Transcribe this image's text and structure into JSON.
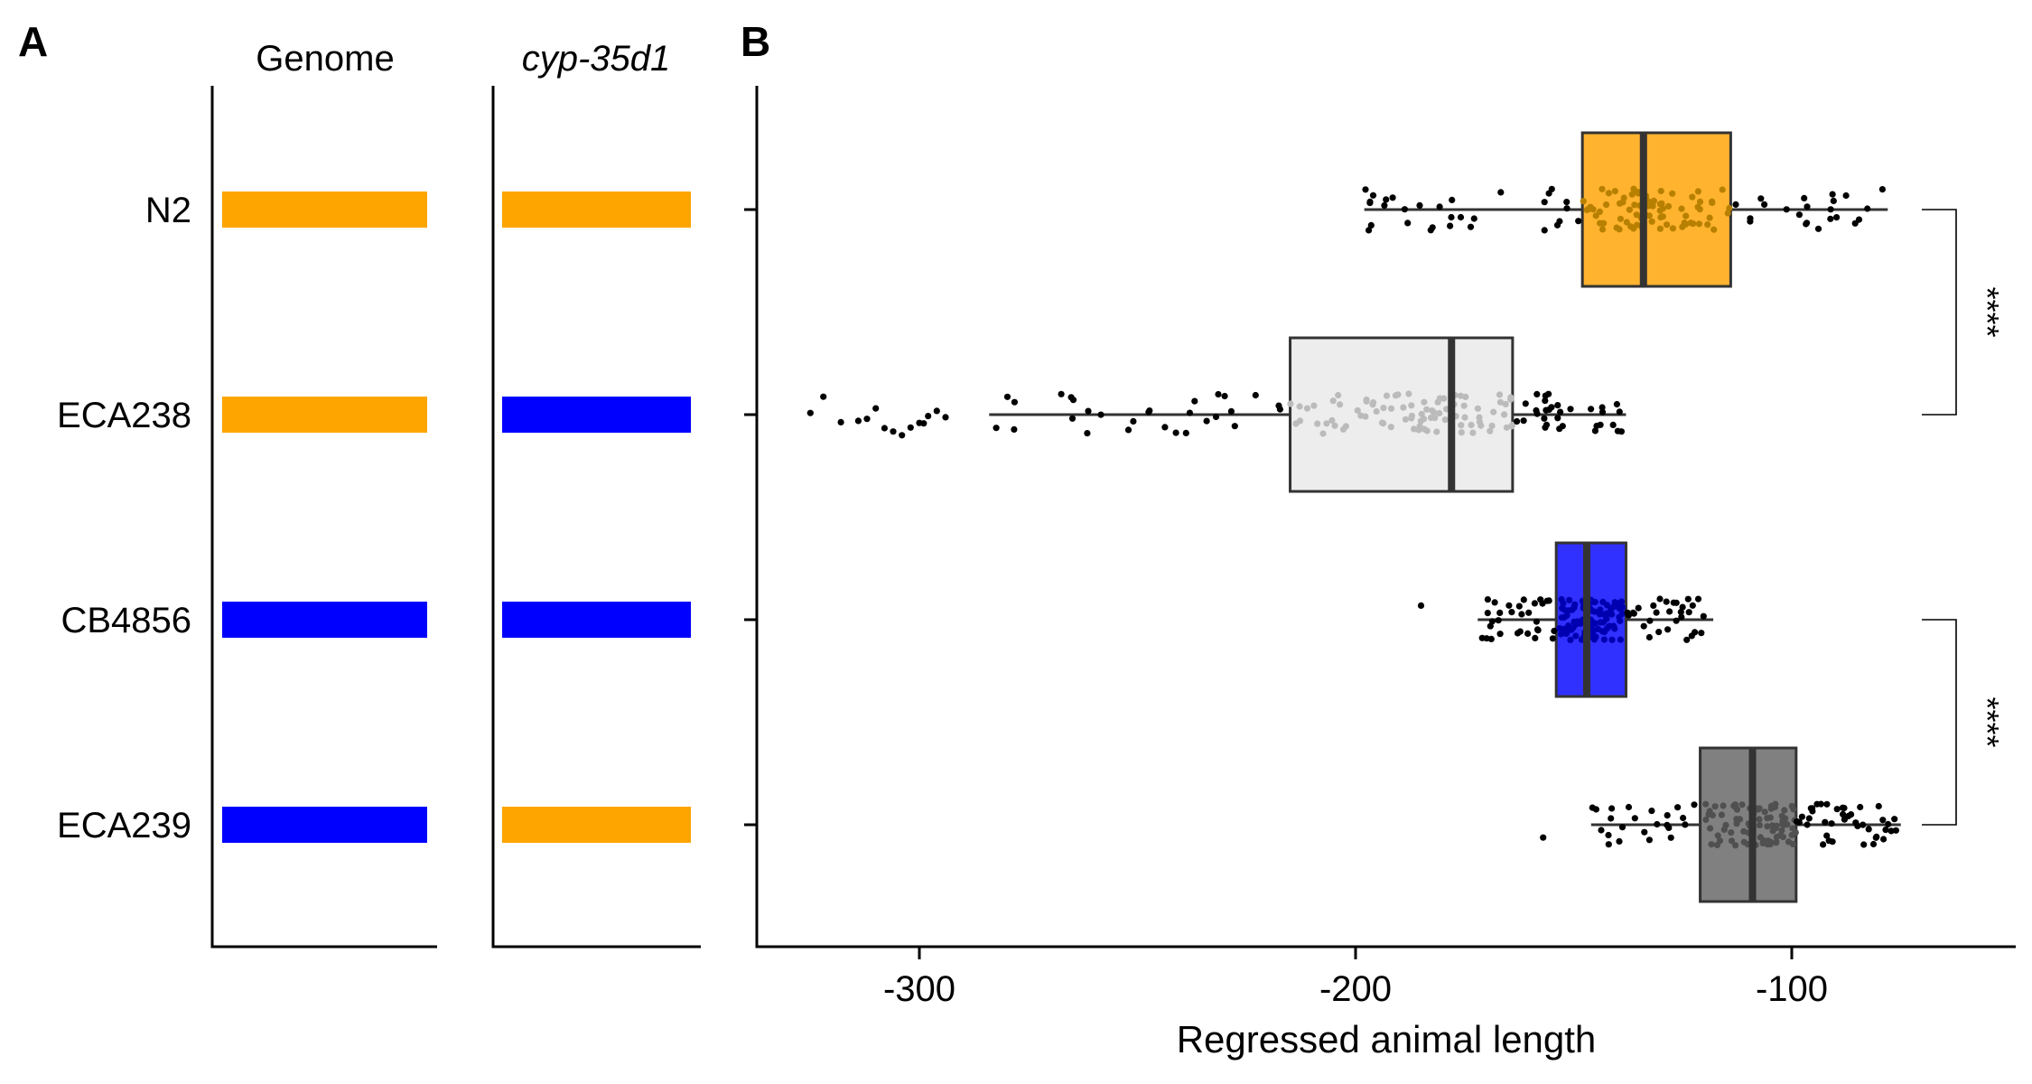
{
  "panels": {
    "a_label": "A",
    "b_label": "B"
  },
  "genotype_panel": {
    "columns": [
      "Genome",
      "cyp-35d1"
    ],
    "strains": [
      {
        "name": "N2",
        "genome": "orange",
        "cyp35d1": "orange"
      },
      {
        "name": "ECA238",
        "genome": "orange",
        "cyp35d1": "blue"
      },
      {
        "name": "CB4856",
        "genome": "blue",
        "cyp35d1": "blue"
      },
      {
        "name": "ECA239",
        "genome": "blue",
        "cyp35d1": "orange"
      }
    ],
    "colors": {
      "orange": "#FFA500",
      "blue": "#0000FF"
    }
  },
  "chart_data": {
    "type": "boxplot",
    "orientation": "horizontal",
    "xlabel": "Regressed animal length",
    "xlim": [
      -338,
      -42
    ],
    "xticks": [
      -300,
      -200,
      -100
    ],
    "xtick_labels": [
      "-300",
      "-200",
      "-100"
    ],
    "categories": [
      "N2",
      "ECA238",
      "CB4856",
      "ECA239"
    ],
    "series": [
      {
        "name": "N2",
        "color": "#FFB32F",
        "inner_point_color": "#B88000",
        "box": {
          "whisker_low": -198,
          "q1": -148,
          "median": -134,
          "q3": -114,
          "whisker_high": -78
        },
        "n": 130
      },
      {
        "name": "ECA238",
        "color": "#EDEDED",
        "inner_point_color": "#BBBBBB",
        "box": {
          "whisker_low": -284,
          "q1": -215,
          "median": -178,
          "q3": -164,
          "whisker_high": -138
        },
        "n": 150
      },
      {
        "name": "CB4856",
        "color": "#3030FF",
        "inner_point_color": "#0000B0",
        "box": {
          "whisker_low": -172,
          "q1": -154,
          "median": -147,
          "q3": -138,
          "whisker_high": -118
        },
        "n": 160
      },
      {
        "name": "ECA239",
        "color": "#808080",
        "inner_point_color": "#505050",
        "box": {
          "whisker_low": -146,
          "q1": -121,
          "median": -109,
          "q3": -99,
          "whisker_high": -75
        },
        "n": 150
      }
    ],
    "outliers": {
      "ECA238": [
        -325,
        -322,
        -318,
        -314,
        -312,
        -310,
        -308,
        -306,
        -304,
        -302,
        -300,
        -299,
        -298,
        -296,
        -294
      ],
      "CB4856": [
        -185
      ],
      "ECA239": [
        -157
      ]
    },
    "comparisons": [
      {
        "groups": [
          "N2",
          "ECA238"
        ],
        "label": "****"
      },
      {
        "groups": [
          "CB4856",
          "ECA239"
        ],
        "label": "****"
      }
    ]
  }
}
